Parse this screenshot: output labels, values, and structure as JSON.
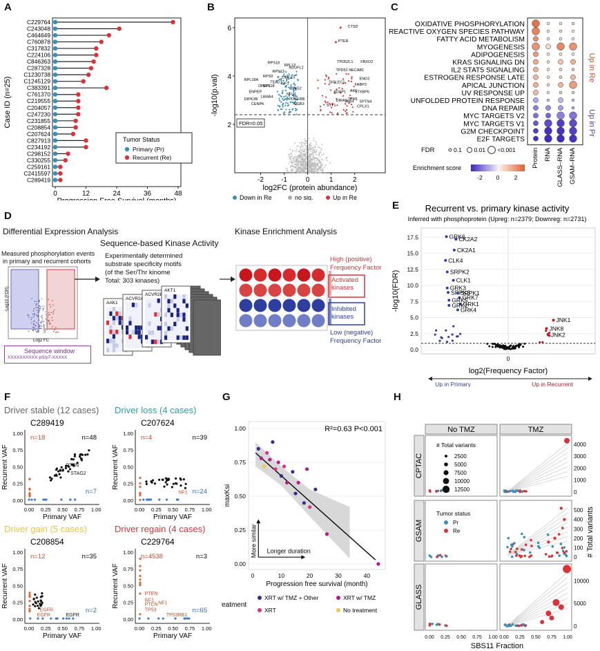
{
  "labels": {
    "A": "A",
    "B": "B",
    "C": "C",
    "D": "D",
    "E": "E",
    "F": "F",
    "G": "G",
    "H": "H"
  },
  "panelA": {
    "ylabel": "Case ID (n=25)",
    "xlabel": "Progression Free Survival (months)",
    "xticks": [
      "0",
      "12",
      "24",
      "36",
      "48"
    ],
    "legend_title": "Tumor Status",
    "legend_items": [
      "Primary (Pr)",
      "Recurrent (Re)"
    ],
    "colors": {
      "primary": "#3a8fb7",
      "recurrent": "#d9333a"
    },
    "cases": [
      "C229764",
      "C243048",
      "C464649",
      "C760878",
      "C317832",
      "C224106",
      "C846363",
      "C287328",
      "C1230738",
      "C1245129",
      "C383391",
      "C761370",
      "C219555",
      "C204057",
      "C247230",
      "C231855",
      "C208854",
      "C207624",
      "C827913",
      "C234192",
      "C298152",
      "C330255",
      "C259161",
      "C2415597",
      "C289419"
    ],
    "pfs": [
      46,
      25,
      21,
      18,
      16,
      16,
      15,
      14,
      13,
      11,
      20,
      9,
      9,
      9,
      9,
      8,
      8,
      7,
      12,
      12,
      5,
      4,
      2,
      2,
      2
    ]
  },
  "panelB": {
    "ylabel": "-log10(p.val)",
    "xlabel": "log2FC (protein abundance)",
    "xticks": [
      "-2",
      "-1",
      "0",
      "1",
      "2"
    ],
    "yticks": [
      "2",
      "4",
      "6"
    ],
    "fdr_label": "FDR=0.05",
    "legend": [
      "Down in Re",
      "no sig.",
      "Up in Re"
    ],
    "genes_down": [
      "RPS18",
      "RPL13",
      "RPS13",
      "RPS9",
      "CWC15",
      "RPL18A",
      "TEADT",
      "DPEP1",
      "ENPEP",
      "DIPK2B",
      "CENPK",
      "LAMA4",
      "RPL28",
      "NDUFL2",
      "NF1",
      "ENG2",
      "NFU1",
      "PDGFRB",
      "MGB3"
    ],
    "genes_up": [
      "CTSD",
      "PTER",
      "TPD52L1",
      "FBXO2",
      "TPD52",
      "NECAB1",
      "ENO2",
      "SIGLEC1",
      "FABP3",
      "ADAP1",
      "AK5",
      "STXBP6",
      "TPM1",
      "DIRAS",
      "SPTN4",
      "MBH",
      "STY1",
      "CPLX1"
    ]
  },
  "panelC": {
    "pathways": [
      "OXIDATIVE PHOSPHORYLATION",
      "REACTIVE OXYGEN SPECIES PATHWAY",
      "FATTY ACID METABOLISM",
      "MYOGENESIS",
      "ADIPOGENESIS",
      "KRAS SIGNALING DN",
      "IL2 STAT5 SIGNALING",
      "ESTROGEN RESPONSE LATE",
      "APICAL JUNCTION",
      "UV RESPONSE UP",
      "UNFOLDED PROTEIN RESPONSE",
      "DNA REPAIR",
      "MYC TARGETS V2",
      "MYC TARGETS V1",
      "G2M CHECKPOINT",
      "E2F TARGETS"
    ],
    "columns": [
      "Protein",
      "RNA",
      "GLASS–RNA",
      "GSAM–RNA"
    ],
    "up_label": "Up in Re",
    "down_label": "Up in Pr",
    "fdr_title": "FDR",
    "fdr_levels": [
      "0.1",
      "0.01",
      "<0.001"
    ],
    "es_title": "Enrichment score",
    "es_ticks": [
      "-2",
      "0",
      "2"
    ],
    "scores": [
      [
        2.6,
        0.3,
        0.4,
        0.5
      ],
      [
        2.3,
        0.4,
        0.5,
        0.4
      ],
      [
        2.0,
        0.4,
        0.5,
        0.4
      ],
      [
        2.0,
        0.6,
        2.2,
        2.0
      ],
      [
        1.8,
        0.4,
        0.5,
        0.4
      ],
      [
        1.5,
        0.5,
        1.0,
        1.4
      ],
      [
        1.3,
        0.4,
        0.8,
        0.9
      ],
      [
        1.3,
        0.4,
        0.9,
        1.2
      ],
      [
        1.4,
        0.5,
        1.3,
        1.8
      ],
      [
        1.2,
        0.4,
        0.8,
        0.8
      ],
      [
        -1.0,
        -0.5,
        -0.8,
        -0.6
      ],
      [
        -1.6,
        -1.4,
        -1.2,
        -1.0
      ],
      [
        -1.8,
        -2.0,
        -1.6,
        -1.8
      ],
      [
        -2.2,
        -2.4,
        -2.6,
        -2.4
      ],
      [
        -2.6,
        -2.8,
        -2.8,
        -2.6
      ],
      [
        -2.8,
        -2.9,
        -2.9,
        -2.8
      ]
    ],
    "fdr_size": [
      [
        3,
        1,
        1,
        1
      ],
      [
        3,
        1,
        1,
        1
      ],
      [
        2,
        1,
        1,
        1
      ],
      [
        3,
        2,
        3,
        3
      ],
      [
        2,
        1,
        1,
        1
      ],
      [
        2,
        1,
        2,
        2
      ],
      [
        2,
        1,
        1,
        1
      ],
      [
        2,
        1,
        1,
        2
      ],
      [
        2,
        1,
        2,
        3
      ],
      [
        2,
        1,
        1,
        1
      ],
      [
        2,
        1,
        2,
        1
      ],
      [
        2,
        2,
        2,
        1
      ],
      [
        2,
        2,
        3,
        3
      ],
      [
        2,
        3,
        3,
        3
      ],
      [
        2,
        3,
        3,
        3
      ],
      [
        2,
        3,
        3,
        3
      ]
    ]
  },
  "panelD": {
    "title1": "Differential Expression Analysis",
    "desc1": "Measured phosphorylation events",
    "desc1b": "in primary and recurrent cohorts",
    "axis_y": "-Log10 (FDR)",
    "axis_x": "Log2 FC",
    "seq_title": "Sequence window",
    "seq_text": "XXXXXXXXXX-pS/pT-XXXXX",
    "title2": "Sequence-based Kinase Activity",
    "desc2a": "Experimentally determined",
    "desc2b": "substrate specificity motifs",
    "desc2c": "(of the Ser/Thr kinome",
    "desc2d": "Total: 303 kinases)",
    "kinases": [
      "AAK1",
      "ACVR2A",
      "ACVR2B",
      "AKT1"
    ],
    "title3": "Kinase Enrichment Analysis",
    "high_a": "High (positive)",
    "high_b": "Frequency Factor",
    "activated": "Activated kinases",
    "inhibited": "Inhibited kinases",
    "low_a": "Low (negative)",
    "low_b": "Frequency Factor"
  },
  "panelE": {
    "title": "Recurrent vs. primary kinase activity",
    "subtitle": "Inferred with phosphoprotein (Upreg: n=2379; Downreg: n=2731)",
    "ylabel": "-log10(FDR)",
    "xlabel": "log2(Frequency Factor)",
    "yticks": [
      "0.0",
      "2.5",
      "5.0",
      "7.5",
      "10.0",
      "12.5",
      "15.0",
      "17.5"
    ],
    "xtick": "0",
    "left_label": "Up in Primary",
    "right_label": "Up in Recurrent",
    "kinases": [
      "GRK6",
      "CK2A2",
      "CK2A1",
      "CLK4",
      "SRPK2",
      "CLK1",
      "GRK3",
      "SRPK3",
      "SRPK1",
      "GRK7",
      "GRK5",
      "GRK1",
      "GRK2",
      "GRK4",
      "JNK1",
      "JNK8",
      "JNK2"
    ]
  },
  "panelF": {
    "ylabel": "Recurrent VAF",
    "xlabel": "Primary VAF",
    "ticks": [
      "0.00",
      "0.25",
      "0.50",
      "0.75",
      "1.00"
    ],
    "subpanels": [
      {
        "title": "Driver stable (12 cases)",
        "case": "C289419",
        "n_total": "n=48",
        "n_left": "n=18",
        "n_right": "n=7",
        "genes": [
          "PTEN",
          "STAG2"
        ],
        "title_color": "#666666"
      },
      {
        "title": "Driver loss (4 cases)",
        "case": "C207624",
        "n_total": "n=39",
        "n_left": "n=4",
        "n_right": "n=24",
        "genes": [
          "NF1"
        ],
        "title_color": "#2aa3a3"
      },
      {
        "title": "Driver gain (5 cases)",
        "case": "C208854",
        "n_total": "n=35",
        "n_left": "n=12",
        "n_right": "n=2",
        "genes": [
          "EGFR",
          "EGFR",
          "EGFR"
        ],
        "title_color": "#e6c34c"
      },
      {
        "title": "Driver regain (4 cases)",
        "case": "C229764",
        "n_total": "n=3",
        "n_left": "n=4538",
        "n_right": "n=65",
        "genes": [
          "PTEN",
          "NF1",
          "PTEN",
          "NF1",
          "TP53",
          "TP53RB1"
        ],
        "title_color": "#d9333a"
      }
    ]
  },
  "panelG": {
    "ylabel": "maxKsi",
    "xlabel": "Progression free survival (month)",
    "stat": "R²=0.63 P<0.001",
    "xticks": [
      "0",
      "10",
      "20",
      "30",
      "40"
    ],
    "yticks": [
      "0.00",
      "0.25",
      "0.50",
      "0.75",
      "1.00"
    ],
    "arrow_y": "More similar",
    "arrow_x": "Longer duration",
    "legend_title": "Treatment",
    "legend": [
      "XRT w/ TMZ + Other",
      "XRT w/ TMZ",
      "XRT",
      "No treatment"
    ],
    "legend_colors": [
      "#3b2a8c",
      "#b01f86",
      "#d9338a",
      "#f0c64a"
    ]
  },
  "panelH": {
    "col_headers": [
      "No TMZ",
      "TMZ"
    ],
    "row_headers": [
      "CPTAC",
      "GSAM",
      "GLASS"
    ],
    "ylabel": "# Total variants",
    "xlabel": "SBS11 Fraction",
    "xticks": [
      "0.00",
      "0.25",
      "0.50",
      "0.75",
      "1.00"
    ],
    "size_title": "# Total variants",
    "size_levels": [
      "2500",
      "5000",
      "7500",
      "10000",
      "12500"
    ],
    "color_title": "Tumor status",
    "color_items": [
      "Pr",
      "Re"
    ],
    "cptac_ticks": [
      "0",
      "1000",
      "2000",
      "3000",
      "4000"
    ],
    "gsam_ticks": [
      "0",
      "100",
      "200",
      "300",
      "400",
      "500"
    ],
    "glass_ticks": [
      "0",
      "5000",
      "10000"
    ]
  }
}
